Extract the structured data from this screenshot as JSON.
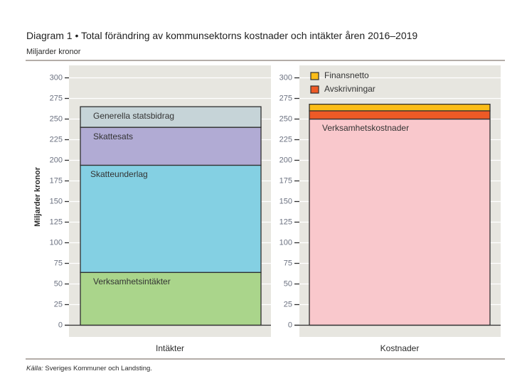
{
  "header": {
    "title": "Diagram 1 • Total förändring av kommunsektorns kostnader och intäkter åren 2016–2019",
    "subtitle": "Miljarder kronor"
  },
  "footer": {
    "source_label": "Källa:",
    "source_text": " Sveriges Kommuner och Landsting."
  },
  "colors": {
    "panel_background": "#e7e6e0",
    "gridline": "#ffffff",
    "axis": "#2f2f2f",
    "rule": "#9b928b"
  },
  "chart_data": {
    "type": "bar",
    "stacked": true,
    "title": "Diagram 1 • Total förändring av kommunsektorns kostnader och intäkter åren 2016–2019",
    "subtitle": "Miljarder kronor",
    "xlabel": "",
    "ylabel": "Miljarder kronor",
    "ylim": [
      0,
      300
    ],
    "yticks": [
      0,
      25,
      50,
      75,
      100,
      125,
      150,
      175,
      200,
      225,
      250,
      275,
      300
    ],
    "ytick_labels": [
      "0",
      "25",
      "50",
      "75",
      "100",
      "125",
      "150",
      "175",
      "200",
      "225",
      "250",
      "275",
      "300"
    ],
    "grid": true,
    "categories": [
      "Intäkter",
      "Kostnader"
    ],
    "panels": [
      {
        "category": "Intäkter",
        "total": 265,
        "series": [
          {
            "name": "Verksamhetsintäkter",
            "value": 64,
            "color": "#aad58b",
            "label_inside": true
          },
          {
            "name": "Skatteunderlag",
            "value": 130,
            "color": "#84d0e3",
            "label_inside": true
          },
          {
            "name": "Skattesats",
            "value": 46,
            "color": "#b1abd4",
            "label_inside": true
          },
          {
            "name": "Generella statsbidrag",
            "value": 25,
            "color": "#c6d4d8",
            "label_inside": true
          }
        ]
      },
      {
        "category": "Kostnader",
        "total": 268,
        "series": [
          {
            "name": "Verksamhetskostnader",
            "value": 250,
            "color": "#f9c8cc",
            "label_inside": true
          },
          {
            "name": "Avskrivningar",
            "value": 10,
            "color": "#ee5a26",
            "label_inside": false
          },
          {
            "name": "Finansnetto",
            "value": 8,
            "color": "#fbbd18",
            "label_inside": false
          }
        ]
      }
    ],
    "legend": {
      "panel": 1,
      "placement": "top-left",
      "entries": [
        {
          "name": "Finansnetto",
          "color": "#fbbd18"
        },
        {
          "name": "Avskrivningar",
          "color": "#ee5a26"
        }
      ]
    }
  }
}
